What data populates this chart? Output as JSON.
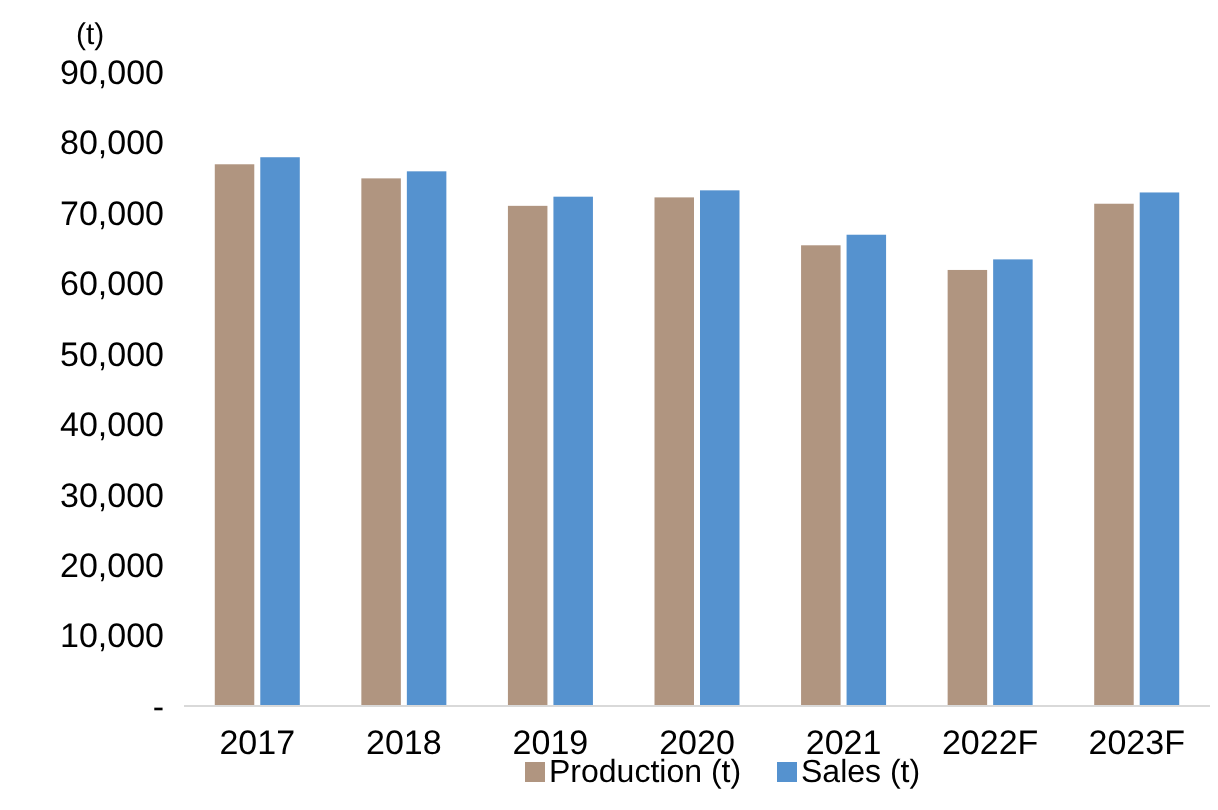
{
  "chart_data": {
    "type": "bar",
    "ylabel": "(t)",
    "categories": [
      "2017",
      "2018",
      "2019",
      "2020",
      "2021",
      "2022F",
      "2023F"
    ],
    "series": [
      {
        "name": "Production (t)",
        "color": "#b09580",
        "values": [
          76900,
          74900,
          71000,
          72200,
          65400,
          61900,
          71300
        ]
      },
      {
        "name": "Sales (t)",
        "color": "#5592cf",
        "values": [
          77900,
          75900,
          72300,
          73200,
          66900,
          63400,
          72900
        ]
      }
    ],
    "ylim": [
      0,
      90000
    ],
    "yticks": [
      {
        "value": 0,
        "label": "-"
      },
      {
        "value": 10000,
        "label": "10,000"
      },
      {
        "value": 20000,
        "label": "20,000"
      },
      {
        "value": 30000,
        "label": "30,000"
      },
      {
        "value": 40000,
        "label": "40,000"
      },
      {
        "value": 50000,
        "label": "50,000"
      },
      {
        "value": 60000,
        "label": "60,000"
      },
      {
        "value": 70000,
        "label": "70,000"
      },
      {
        "value": 80000,
        "label": "80,000"
      },
      {
        "value": 90000,
        "label": "90,000"
      }
    ],
    "grid": false,
    "legend": "bottom"
  }
}
